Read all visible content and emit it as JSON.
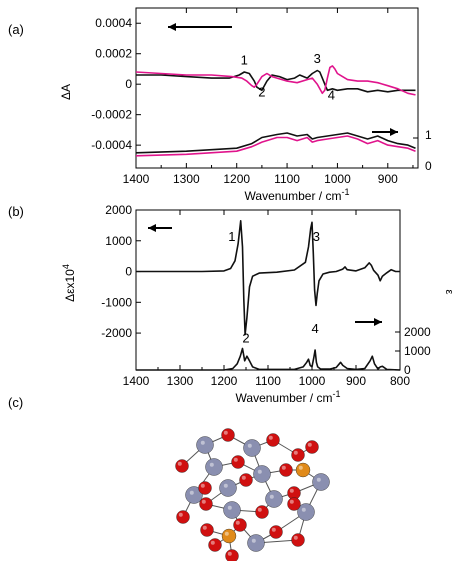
{
  "panel_labels": {
    "a": "(a)",
    "b": "(b)",
    "c": "(c)"
  },
  "colors": {
    "trace_black": "#111111",
    "trace_magenta": "#e0148c",
    "atom_red": "#d01010",
    "atom_gray": "#8a8fb0",
    "atom_orange": "#e08a1a"
  },
  "chart_data": [
    {
      "panel": "(a)",
      "type": "line",
      "title": "",
      "xlabel": "Wavenumber / cm",
      "xlabel_sup": "-1",
      "ylabel": "ΔA",
      "xlim": [
        1400,
        840
      ],
      "ylim": [
        -0.00055,
        0.0005
      ],
      "x_ticks": [
        1400,
        1300,
        1200,
        1100,
        1000,
        900
      ],
      "y_ticks": [
        0.0004,
        0.0002,
        0,
        -0.0002,
        -0.0004
      ],
      "y_tick_labels": [
        "0.0004",
        "0.0002",
        "0",
        "-0.0002",
        "-0.0004"
      ],
      "right_axis_ticks": [
        "1",
        "0"
      ],
      "peak_labels": [
        {
          "text": "1",
          "x": 1185,
          "y": 0.00013
        },
        {
          "text": "2",
          "x": 1150,
          "y": -8e-05
        },
        {
          "text": "3",
          "x": 1040,
          "y": 0.00014
        },
        {
          "text": "4",
          "x": 1012,
          "y": -0.0001
        }
      ],
      "series": [
        {
          "color": "#111111",
          "x": [
            1400,
            1350,
            1300,
            1250,
            1215,
            1195,
            1185,
            1175,
            1165,
            1160,
            1150,
            1140,
            1130,
            1115,
            1100,
            1085,
            1075,
            1060,
            1050,
            1040,
            1035,
            1030,
            1025,
            1020,
            1010,
            1000,
            980,
            960,
            940,
            920,
            900,
            880,
            860,
            845
          ],
          "y": [
            6e-05,
            6e-05,
            5e-05,
            4e-05,
            4e-05,
            6e-05,
            8e-05,
            7e-05,
            2e-05,
            -2e-05,
            -4e-05,
            2e-05,
            6e-05,
            5e-05,
            3e-05,
            4e-05,
            6e-05,
            4e-05,
            7e-05,
            9e-05,
            8e-05,
            4e-05,
            0.0,
            -4e-05,
            -3e-05,
            -4e-05,
            -3e-05,
            -3e-05,
            -5e-05,
            -4e-05,
            -5e-05,
            -4e-05,
            -4e-05,
            -4e-05
          ]
        },
        {
          "color": "#e0148c",
          "x": [
            1400,
            1350,
            1300,
            1250,
            1210,
            1190,
            1180,
            1170,
            1165,
            1160,
            1150,
            1140,
            1130,
            1120,
            1100,
            1080,
            1060,
            1050,
            1040,
            1030,
            1025,
            1020,
            1015,
            1010,
            1005,
            1000,
            990,
            980,
            960,
            940,
            920,
            900,
            880,
            860,
            845
          ],
          "y": [
            8e-05,
            7e-05,
            6e-05,
            6e-05,
            5e-05,
            4e-05,
            2e-05,
            -1e-05,
            -2e-05,
            0.0,
            5e-05,
            7e-05,
            5e-05,
            4e-05,
            2e-05,
            1e-05,
            3e-05,
            4e-05,
            0.0,
            -6e-05,
            -4e-05,
            4e-05,
            0.00011,
            0.00012,
            0.0001,
            7e-05,
            5e-05,
            3e-05,
            2e-05,
            2e-05,
            1e-05,
            -1e-05,
            -3e-05,
            -6e-05,
            -7e-05
          ]
        },
        {
          "color": "#111111",
          "x": [
            1400,
            1300,
            1200,
            1170,
            1150,
            1120,
            1100,
            1080,
            1060,
            1050,
            1040,
            1020,
            1000,
            980,
            960,
            940,
            920,
            900,
            880,
            860,
            845
          ],
          "y": [
            -0.00045,
            -0.00044,
            -0.00042,
            -0.00039,
            -0.00035,
            -0.00033,
            -0.00032,
            -0.00034,
            -0.00033,
            -0.00036,
            -0.00035,
            -0.00034,
            -0.00033,
            -0.00032,
            -0.00034,
            -0.00036,
            -0.00034,
            -0.00037,
            -0.00039,
            -0.0004,
            -0.00042
          ]
        },
        {
          "color": "#e0148c",
          "x": [
            1400,
            1300,
            1200,
            1170,
            1150,
            1120,
            1100,
            1080,
            1060,
            1050,
            1040,
            1020,
            1000,
            980,
            960,
            940,
            920,
            900,
            880,
            860,
            845
          ],
          "y": [
            -0.00047,
            -0.00046,
            -0.00044,
            -0.00041,
            -0.00038,
            -0.00035,
            -0.00035,
            -0.00037,
            -0.00035,
            -0.00038,
            -0.00037,
            -0.00036,
            -0.00035,
            -0.00034,
            -0.00036,
            -0.00039,
            -0.00037,
            -0.0004,
            -0.00041,
            -0.00042,
            -0.00044
          ]
        }
      ]
    },
    {
      "panel": "(b)",
      "type": "line",
      "title": "",
      "xlabel": "Wavenumber / cm",
      "xlabel_sup": "-1",
      "ylabel": "Δεx10",
      "ylabel_sup": "4",
      "right_axis_label": "ε",
      "xlim": [
        1400,
        800
      ],
      "ylim": [
        -3200,
        2000
      ],
      "x_ticks": [
        1400,
        1300,
        1200,
        1100,
        1000,
        900,
        800
      ],
      "y_ticks": [
        2000,
        1000,
        0,
        -1000,
        -2000
      ],
      "y_tick_labels": [
        "2000",
        "1000",
        "0",
        "-1000",
        "-2000"
      ],
      "right_axis_ticks": [
        "2000",
        "1000",
        "0"
      ],
      "peak_labels": [
        {
          "text": "1",
          "x": 1182,
          "y": 1000
        },
        {
          "text": "2",
          "x": 1150,
          "y": -2300
        },
        {
          "text": "3",
          "x": 990,
          "y": 1000
        },
        {
          "text": "4",
          "x": 993,
          "y": -2000
        }
      ],
      "series": [
        {
          "color": "#111111",
          "x": [
            1400,
            1250,
            1200,
            1185,
            1175,
            1168,
            1162,
            1158,
            1155,
            1152,
            1148,
            1142,
            1135,
            1120,
            1080,
            1040,
            1015,
            1008,
            1003,
            1000,
            997,
            994,
            991,
            988,
            984,
            975,
            960,
            945,
            930,
            925,
            920,
            900,
            880,
            870,
            865,
            860,
            850,
            845,
            840,
            830,
            820,
            810,
            800
          ],
          "y": [
            0,
            0,
            20,
            100,
            350,
            900,
            1650,
            800,
            -900,
            -2050,
            -1500,
            -500,
            -150,
            -50,
            -20,
            50,
            300,
            800,
            1400,
            1600,
            600,
            -600,
            -1100,
            -700,
            -300,
            -80,
            -20,
            0,
            80,
            150,
            60,
            20,
            120,
            280,
            200,
            40,
            -120,
            -300,
            -150,
            -40,
            60,
            0,
            0
          ]
        },
        {
          "color": "#111111",
          "x": [
            1400,
            1200,
            1180,
            1170,
            1163,
            1158,
            1153,
            1148,
            1142,
            1135,
            1120,
            1040,
            1020,
            1012,
            1008,
            1004,
            1000,
            996,
            993,
            990,
            987,
            980,
            960,
            945,
            935,
            930,
            920,
            900,
            880,
            868,
            863,
            858,
            850,
            845,
            840,
            830,
            800
          ],
          "y": [
            -3200,
            -3200,
            -3150,
            -3000,
            -2750,
            -2500,
            -2900,
            -2750,
            -2900,
            -3100,
            -3180,
            -3180,
            -3100,
            -2950,
            -2850,
            -3050,
            -3100,
            -2800,
            -2550,
            -2950,
            -3100,
            -3170,
            -3170,
            -3120,
            -2950,
            -3050,
            -3150,
            -3180,
            -3150,
            -2900,
            -2750,
            -3000,
            -3170,
            -3100,
            -3080,
            -3180,
            -3200
          ]
        }
      ]
    }
  ]
}
